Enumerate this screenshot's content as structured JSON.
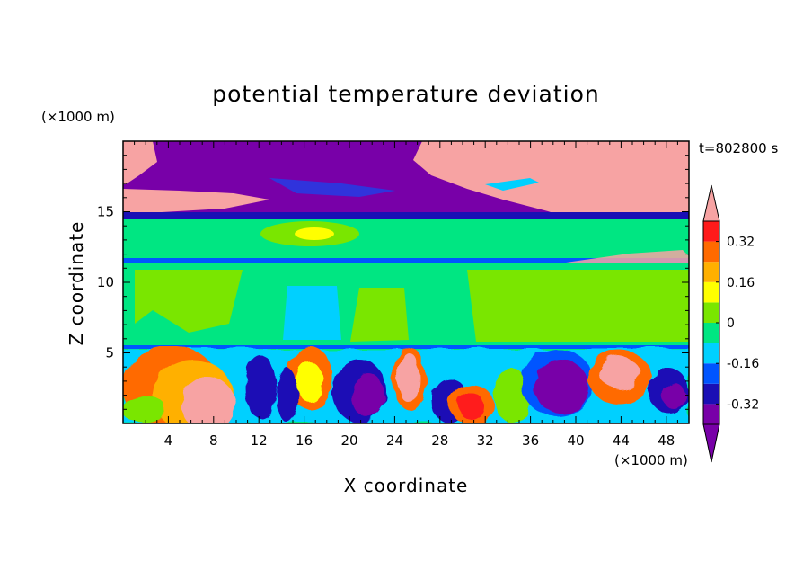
{
  "chart_data": {
    "type": "heatmap",
    "title": "potential temperature deviation",
    "xlabel": "X coordinate",
    "ylabel": "Z coordinate",
    "x_unit": "(×1000 m)",
    "z_unit": "(×1000 m)",
    "time_label": "t=802800 s",
    "xlim": [
      0,
      50
    ],
    "zlim": [
      0,
      20
    ],
    "x_ticks": [
      "4",
      "8",
      "12",
      "16",
      "20",
      "24",
      "28",
      "32",
      "36",
      "40",
      "44",
      "48"
    ],
    "z_ticks": [
      "5",
      "10",
      "15"
    ],
    "colorbar": {
      "levels": [
        -0.4,
        -0.32,
        -0.24,
        -0.16,
        -0.08,
        0,
        0.08,
        0.16,
        0.24,
        0.32,
        0.4
      ],
      "tick_labels": [
        "0.32",
        "0.16",
        "0",
        "-0.16",
        "-0.32"
      ],
      "colors_low_to_high": [
        "#7800a8",
        "#1a0fb5",
        "#0055ff",
        "#00d0ff",
        "#00e682",
        "#7ae600",
        "#ffff00",
        "#ffb000",
        "#ff6a00",
        "#ff1a1a",
        "#f7a3a3"
      ]
    },
    "fields": {
      "upper_layer": "strongly negative deviation with positive patches near z=15-19",
      "tropopause_band_z": 14.5,
      "mid_layer": "near zero, slightly positive and negative bands",
      "lower_layer": "turbulent mixed positive and negative cells below z=5.5"
    }
  }
}
